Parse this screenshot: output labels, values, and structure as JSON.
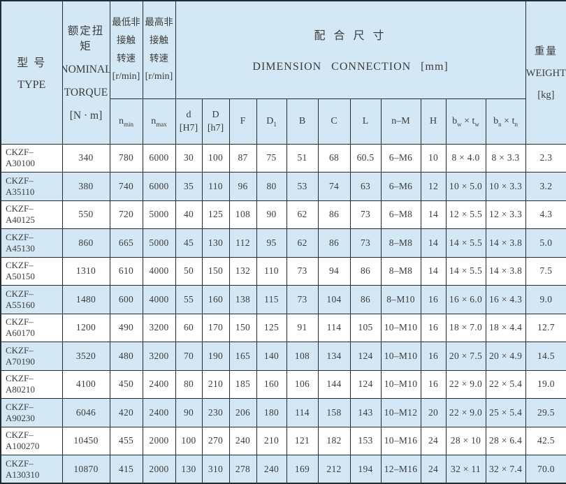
{
  "table": {
    "header": {
      "type": {
        "cn": "型 号",
        "en": "TYPE"
      },
      "torque": {
        "cn": "额定扭矩",
        "en1": "NOMINAL",
        "en2": "TORQUE",
        "unit": "[N · m]"
      },
      "nmin_label": {
        "l1": "最低非",
        "l2": "接触",
        "l3": "转速",
        "unit": "[r/min]"
      },
      "nmax_label": {
        "l1": "最高非",
        "l2": "接触",
        "l3": "转速",
        "unit": "[r/min]"
      },
      "dimension": {
        "cn": "配 合 尺 寸",
        "en": "DIMENSION CONNECTION [mm]"
      },
      "weight": {
        "cn": "重量",
        "en": "WEIGHT",
        "unit": "[kg]"
      },
      "sub": {
        "nmin_main": "n",
        "nmin_sub": "min",
        "nmax_main": "n",
        "nmax_sub": "max",
        "d_top": "d",
        "d_bot": "[H7]",
        "D_top": "D",
        "D_bot": "[h7]",
        "F": "F",
        "D1_main": "D",
        "D1_sub": "1",
        "B": "B",
        "C": "C",
        "L": "L",
        "nM": "n–M",
        "H": "H",
        "bw_b": "b",
        "bw_bsub": "w",
        "bw_x": "×",
        "bw_t": "t",
        "bw_tsub": "w",
        "bn_b": "b",
        "bn_bsub": "n",
        "bn_x": "×",
        "bn_t": "t",
        "bn_tsub": "n"
      }
    },
    "rows": [
      [
        "CKZF–A30100",
        "340",
        "780",
        "6000",
        "30",
        "100",
        "87",
        "75",
        "51",
        "68",
        "60.5",
        "6–M6",
        "10",
        "8 × 4.0",
        "8 × 3.3",
        "2.3"
      ],
      [
        "CKZF–A35110",
        "380",
        "740",
        "6000",
        "35",
        "110",
        "96",
        "80",
        "53",
        "74",
        "63",
        "6–M6",
        "12",
        "10 × 5.0",
        "10 × 3.3",
        "3.2"
      ],
      [
        "CKZF–A40125",
        "550",
        "720",
        "5000",
        "40",
        "125",
        "108",
        "90",
        "62",
        "86",
        "73",
        "6–M8",
        "14",
        "12 × 5.5",
        "12 × 3.3",
        "4.3"
      ],
      [
        "CKZF–A45130",
        "860",
        "665",
        "5000",
        "45",
        "130",
        "112",
        "95",
        "62",
        "86",
        "73",
        "8–M8",
        "14",
        "14 × 5.5",
        "14 × 3.8",
        "5.0"
      ],
      [
        "CKZF–A50150",
        "1310",
        "610",
        "4000",
        "50",
        "150",
        "132",
        "110",
        "73",
        "94",
        "86",
        "8–M8",
        "14",
        "14 × 5.5",
        "14 × 3.8",
        "7.5"
      ],
      [
        "CKZF–A55160",
        "1480",
        "600",
        "4000",
        "55",
        "160",
        "138",
        "115",
        "73",
        "104",
        "86",
        "8–M10",
        "16",
        "16 × 6.0",
        "16 × 4.3",
        "9.0"
      ],
      [
        "CKZF–A60170",
        "1200",
        "490",
        "3200",
        "60",
        "170",
        "150",
        "125",
        "91",
        "114",
        "105",
        "10–M10",
        "16",
        "18 × 7.0",
        "18 × 4.4",
        "12.7"
      ],
      [
        "CKZF–A70190",
        "3520",
        "480",
        "3200",
        "70",
        "190",
        "165",
        "140",
        "108",
        "134",
        "124",
        "10–M10",
        "16",
        "20 × 7.5",
        "20 × 4.9",
        "14.5"
      ],
      [
        "CKZF–A80210",
        "4100",
        "450",
        "2400",
        "80",
        "210",
        "185",
        "160",
        "106",
        "144",
        "124",
        "10–M10",
        "16",
        "22 × 9.0",
        "22 × 5.4",
        "19.0"
      ],
      [
        "CKZF–A90230",
        "6046",
        "420",
        "2400",
        "90",
        "230",
        "206",
        "180",
        "114",
        "158",
        "143",
        "10–M12",
        "20",
        "22 × 9.0",
        "25 × 5.4",
        "29.5"
      ],
      [
        "CKZF–A100270",
        "10450",
        "455",
        "2000",
        "100",
        "270",
        "240",
        "210",
        "121",
        "182",
        "153",
        "10–M16",
        "24",
        "28 × 10",
        "28 × 6.4",
        "42.5"
      ],
      [
        "CKZF–A130310",
        "10870",
        "415",
        "2000",
        "130",
        "310",
        "278",
        "240",
        "169",
        "212",
        "194",
        "12–M16",
        "24",
        "32 × 11",
        "32 × 7.4",
        "70.0"
      ]
    ]
  }
}
